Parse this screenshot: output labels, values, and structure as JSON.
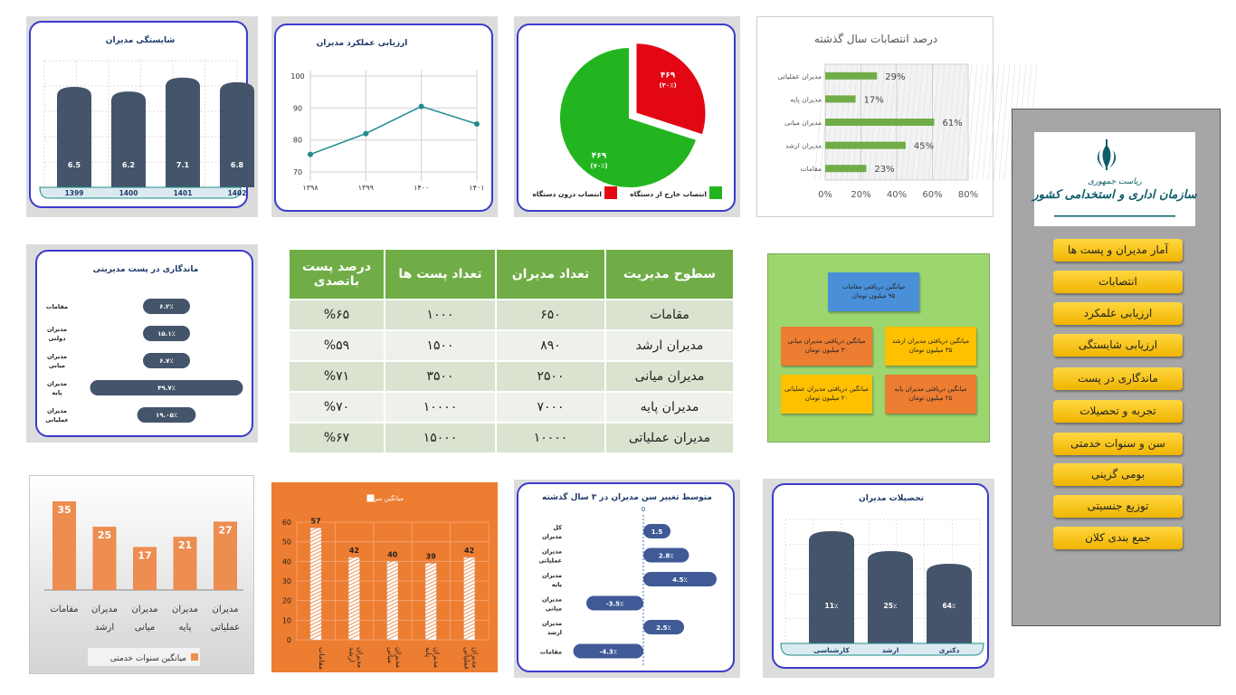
{
  "competence": {
    "title": "شایستگی مدیران",
    "bars": [
      {
        "year": "1399",
        "value": 6.5
      },
      {
        "year": "1400",
        "value": 6.2
      },
      {
        "year": "1401",
        "value": 7.1
      },
      {
        "year": "1402",
        "value": 6.8
      }
    ]
  },
  "performance": {
    "title": "ارزیابی عملکرد مدیران",
    "x": [
      "۱۳۹۸",
      "۱۳۹۹",
      "۱۴۰۰",
      "۱۴۰۱"
    ],
    "y": [
      75.5,
      82,
      90.5,
      85
    ],
    "yticks": [
      "70",
      "80",
      "90",
      "100"
    ]
  },
  "pie": {
    "slices": [
      {
        "label": "۴۶۹",
        "pct": "(۳۰٪)",
        "value": 30,
        "color": "#e30613"
      },
      {
        "label": "۴۶۹",
        "pct": "(۷۰٪)",
        "value": 70,
        "color": "#22b51f"
      }
    ],
    "legend": [
      {
        "label": "انتصاب خارج از دستگاه",
        "color": "#22b51f"
      },
      {
        "label": "انتصاب درون دستگاه",
        "color": "#e30613"
      }
    ]
  },
  "appoint": {
    "title": "درصد انتصابات سال گذشته",
    "rows": [
      {
        "label": "مدیران عملیاتی",
        "value": 29,
        "text": "29%"
      },
      {
        "label": "مدیران پایه",
        "value": 17,
        "text": "17%"
      },
      {
        "label": "مدیران میانی",
        "value": 61,
        "text": "61%"
      },
      {
        "label": "مدیران ارشد",
        "value": 45,
        "text": "45%"
      },
      {
        "label": "مقامات",
        "value": 23,
        "text": "23%"
      }
    ],
    "xticks": [
      "0%",
      "20%",
      "40%",
      "60%",
      "80%"
    ]
  },
  "retention": {
    "title": "ماندگاری در پست مدیریتی",
    "rows": [
      {
        "label": "مقامات",
        "value": 6.2,
        "text": "۶.۲٪"
      },
      {
        "label": "مدیران دولتی",
        "value": 15.1,
        "text": "۱۵.۱٪"
      },
      {
        "label": "مدیران میانی",
        "value": 6.7,
        "text": "۶.۷٪"
      },
      {
        "label": "مدیران پایه",
        "value": 49.7,
        "text": "۴۹.۷٪"
      },
      {
        "label": "مدیران عملیاتی",
        "value": 19.05,
        "text": "۱۹.۰۵٪"
      }
    ]
  },
  "table": {
    "headers": [
      "سطوح مدیریت",
      "تعداد مدیران",
      "تعداد پست ها",
      "درصد پست باتصدی"
    ],
    "rows": [
      [
        "مقامات",
        "۶۵۰",
        "۱۰۰۰",
        "%۶۵"
      ],
      [
        "مدیران ارشد",
        "۸۹۰",
        "۱۵۰۰",
        "%۵۹"
      ],
      [
        "مدیران میانی",
        "۲۵۰۰",
        "۳۵۰۰",
        "%۷۱"
      ],
      [
        "مدیران پایه",
        "۷۰۰۰",
        "۱۰۰۰۰",
        "%۷۰"
      ],
      [
        "مدیران عملیاتی",
        "۱۰۰۰۰",
        "۱۵۰۰۰",
        "%۶۷"
      ]
    ]
  },
  "salary": [
    {
      "l1": "میانگین دریافتی مقامات",
      "l2": "۹۵ میلیون تومان",
      "color": "#4a90d9"
    },
    {
      "l1": "میانگین دریافتی مدیران ارشد",
      "l2": "۳۵ میلیون تومان",
      "color": "#ffc000"
    },
    {
      "l1": "میانگین دریافتی مدیران میانی",
      "l2": "۳۰ میلیون تومان",
      "color": "#ed7d31"
    },
    {
      "l1": "میانگین دریافتی مدیران پایه",
      "l2": "۲۵ میلیون تومان",
      "color": "#ed7d31"
    },
    {
      "l1": "میانگین دریافتی مدیران عملیاتی",
      "l2": "۲۰ میلیون تومان",
      "color": "#ffc000"
    }
  ],
  "service": {
    "legend": "میانگین سنوات خدمتی",
    "bars": [
      {
        "label": "مقامات",
        "value": 35
      },
      {
        "label": "مدیران ارشد",
        "value": 25
      },
      {
        "label": "مدیران میانی",
        "value": 17
      },
      {
        "label": "مدیران پایه",
        "value": 21
      },
      {
        "label": "مدیران عملیاتی",
        "value": 27
      }
    ]
  },
  "age": {
    "legend": "میانگین سن",
    "bars": [
      {
        "label": "مقامات",
        "value": 57
      },
      {
        "label": "مدیران ارشد",
        "value": 42
      },
      {
        "label": "مدیران میانی",
        "value": 40
      },
      {
        "label": "مدیران پایه",
        "value": 39
      },
      {
        "label": "مدیران عملیاتی",
        "value": 42
      }
    ],
    "yticks": [
      "0",
      "10",
      "20",
      "30",
      "40",
      "50",
      "60"
    ]
  },
  "agechange": {
    "title": "متوسط تغییر سن مدیران در ۳ سال گذشته",
    "zero": "0",
    "rows": [
      {
        "label": "کل مدیران",
        "value": 1.5,
        "text": "1.5"
      },
      {
        "label": "مدیران عملیاتی",
        "value": 2.8,
        "text": "2.8٪"
      },
      {
        "label": "مدیران پایه",
        "value": 4.5,
        "text": "4.5٪"
      },
      {
        "label": "مدیران میانی",
        "value": -3.5,
        "text": "-3.5٪"
      },
      {
        "label": "مدیران ارشد",
        "value": 2.5,
        "text": "2.5٪"
      },
      {
        "label": "مقامات",
        "value": -4.3,
        "text": "-4.3٪"
      }
    ]
  },
  "education": {
    "title": "تحصیلات مدیران",
    "bars": [
      {
        "label": "کارشناسی",
        "value": 11,
        "text": "11٪"
      },
      {
        "label": "ارشد",
        "value": 25,
        "text": "25٪"
      },
      {
        "label": "دکتری",
        "value": 64,
        "text": "64٪"
      }
    ]
  },
  "logo": {
    "line1": "ریاست جمهوری",
    "line2": "سازمان اداری و استخدامی کشور"
  },
  "nav": [
    "آمار مدیران و پست ها",
    "انتصابات",
    "ارزیابی علمکرد",
    "ارزیابی شایستگی",
    "ماندگاری در پست",
    "تجربه و تحصیلات",
    "سن و سنوات خدمتی",
    "بومی گزینی",
    "توزیع جنسیتی",
    "جمع بندی کلان"
  ],
  "colors": {
    "navy": "#44546a",
    "green": "#70ad47",
    "orange": "#ed7d31",
    "teal": "#1f8c8c"
  }
}
